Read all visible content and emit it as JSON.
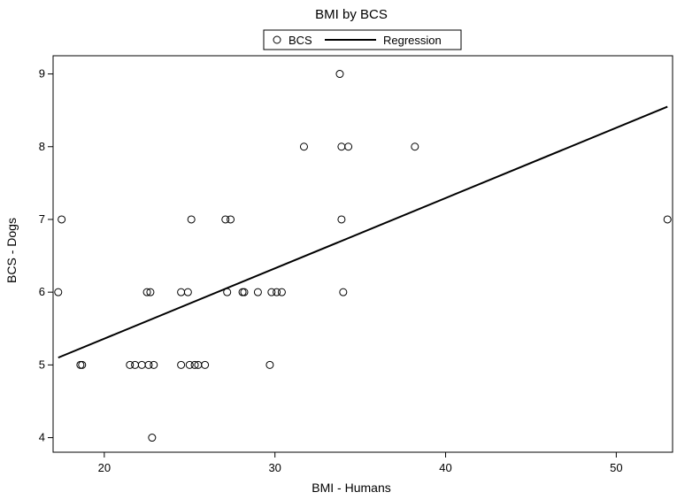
{
  "chart_data": {
    "type": "scatter",
    "title": "BMI by BCS",
    "xlabel": "BMI - Humans",
    "ylabel": "BCS - Dogs",
    "xlim": [
      17,
      53.3
    ],
    "ylim": [
      3.8,
      9.25
    ],
    "xticks": [
      20,
      30,
      40,
      50
    ],
    "yticks": [
      4,
      5,
      6,
      7,
      8,
      9
    ],
    "grid": false,
    "legend": {
      "position": "top-center",
      "entries": [
        "BCS",
        "Regression"
      ]
    },
    "series": [
      {
        "name": "BCS",
        "kind": "scatter",
        "marker": "hollow-circle",
        "points": [
          [
            17.3,
            6
          ],
          [
            17.5,
            7
          ],
          [
            18.6,
            5
          ],
          [
            18.7,
            5
          ],
          [
            21.5,
            5
          ],
          [
            21.8,
            5
          ],
          [
            22.2,
            5
          ],
          [
            22.5,
            6
          ],
          [
            22.7,
            6
          ],
          [
            22.6,
            5
          ],
          [
            22.9,
            5
          ],
          [
            22.8,
            4
          ],
          [
            24.5,
            6
          ],
          [
            24.5,
            5
          ],
          [
            24.9,
            6
          ],
          [
            25.0,
            5
          ],
          [
            25.1,
            7
          ],
          [
            25.3,
            5
          ],
          [
            25.5,
            5
          ],
          [
            25.9,
            5
          ],
          [
            27.1,
            7
          ],
          [
            27.4,
            7
          ],
          [
            27.2,
            6
          ],
          [
            28.1,
            6
          ],
          [
            28.2,
            6
          ],
          [
            29.0,
            6
          ],
          [
            29.7,
            5
          ],
          [
            29.8,
            6
          ],
          [
            30.1,
            6
          ],
          [
            30.4,
            6
          ],
          [
            31.7,
            8
          ],
          [
            33.8,
            9
          ],
          [
            33.9,
            8
          ],
          [
            33.9,
            7
          ],
          [
            34.3,
            8
          ],
          [
            34.0,
            6
          ],
          [
            38.2,
            8
          ],
          [
            53.0,
            7
          ]
        ]
      },
      {
        "name": "Regression",
        "kind": "line",
        "points": [
          [
            17.3,
            5.1
          ],
          [
            53.0,
            8.55
          ]
        ]
      }
    ]
  },
  "colors": {
    "marker": "#000000",
    "line": "#000000",
    "background": "#ffffff"
  }
}
